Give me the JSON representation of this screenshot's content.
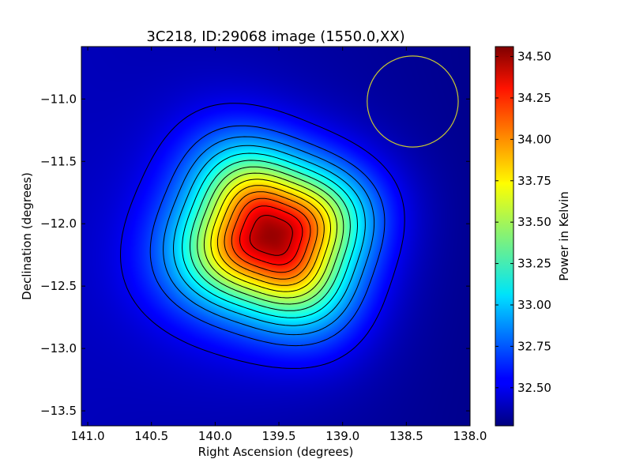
{
  "chart_data": {
    "type": "heatmap",
    "title": "3C218, ID:29068 image (1550.0,XX)",
    "xlabel": "Right Ascension (degrees)",
    "ylabel": "Declination (degrees)",
    "xlim": [
      141.05,
      138.0
    ],
    "ylim": [
      -13.62,
      -10.58
    ],
    "x_ticks": [
      141.0,
      140.5,
      140.0,
      139.5,
      139.0,
      138.5,
      138.0
    ],
    "x_tick_labels": [
      "141.0",
      "140.5",
      "140.0",
      "139.5",
      "139.0",
      "138.5",
      "138.0"
    ],
    "y_ticks": [
      -11.0,
      -11.5,
      -12.0,
      -12.5,
      -13.0,
      -13.5
    ],
    "y_tick_labels": [
      "−11.0",
      "−11.5",
      "−12.0",
      "−12.5",
      "−13.0",
      "−13.5"
    ],
    "colormap": "jet",
    "colorbar": {
      "label": "Power in Kelvin",
      "range": [
        32.27,
        34.56
      ],
      "ticks": [
        32.5,
        32.75,
        33.0,
        33.25,
        33.5,
        33.75,
        34.0,
        34.25,
        34.5
      ],
      "tick_labels": [
        "32.50",
        "32.75",
        "33.00",
        "33.25",
        "33.50",
        "33.75",
        "34.00",
        "34.25",
        "34.50"
      ]
    },
    "source_peak": {
      "ra": 139.55,
      "dec": -12.09,
      "value": 34.56
    },
    "background_level": 32.4,
    "contours": {
      "count": 14,
      "color": "#000000"
    },
    "beam": {
      "ra": 138.45,
      "dec": -11.02,
      "radius_deg": 0.365,
      "color": "#c8c832"
    }
  }
}
